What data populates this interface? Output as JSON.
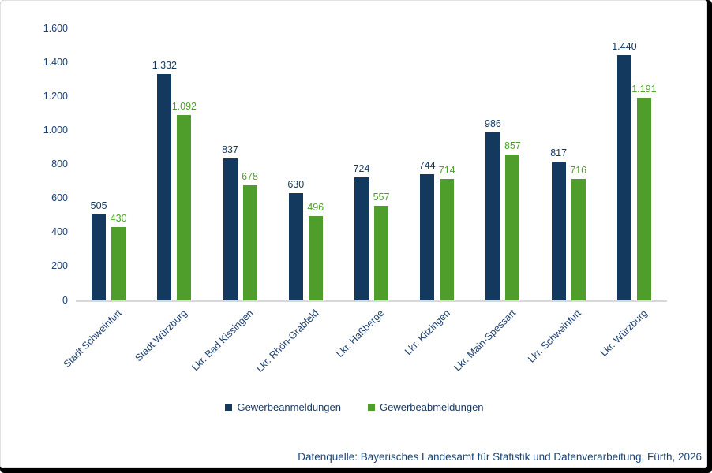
{
  "chart_data": {
    "type": "bar",
    "title": "",
    "xlabel": "",
    "ylabel": "",
    "categories": [
      "Stadt Schweinfurt",
      "Stadt Würzburg",
      "Lkr. Bad Kissingen",
      "Lkr. Rhön-Grabfeld",
      "Lkr. Haßberge",
      "Lkr. Kitzingen",
      "Lkr. Main-Spessart",
      "Lkr. Schweinfurt",
      "Lkr. Würzburg"
    ],
    "series": [
      {
        "name": "Gewerbeanmeldungen",
        "color": "#14395e",
        "values": [
          505,
          1332,
          837,
          630,
          724,
          744,
          986,
          817,
          1440
        ],
        "value_labels": [
          "505",
          "1.332",
          "837",
          "630",
          "724",
          "744",
          "986",
          "817",
          "1.440"
        ]
      },
      {
        "name": "Gewerbeabmeldungen",
        "color": "#4f9e2b",
        "values": [
          430,
          1092,
          678,
          496,
          557,
          714,
          857,
          716,
          1191
        ],
        "value_labels": [
          "430",
          "1.092",
          "678",
          "496",
          "557",
          "714",
          "857",
          "716",
          "1.191"
        ]
      }
    ],
    "ylim": [
      0,
      1600
    ],
    "ytick_step": 200,
    "ytick_labels_top_to_bottom": [
      "1.600",
      "1.400",
      "1.200",
      "1.000",
      "800",
      "600",
      "400",
      "200",
      "0"
    ],
    "grid": false,
    "legend_position": "bottom",
    "axis_line_color": "#d9d9d9",
    "tick_text_color": "#1c3f6e"
  },
  "legend": {
    "items": [
      {
        "label": "Gewerbeanmeldungen",
        "color": "#14395e"
      },
      {
        "label": "Gewerbeabmeldungen",
        "color": "#4f9e2b"
      }
    ]
  },
  "footer": {
    "source_note": "Datenquelle: Bayerisches Landesamt für Statistik und Datenverarbeitung, Fürth, 2026"
  }
}
